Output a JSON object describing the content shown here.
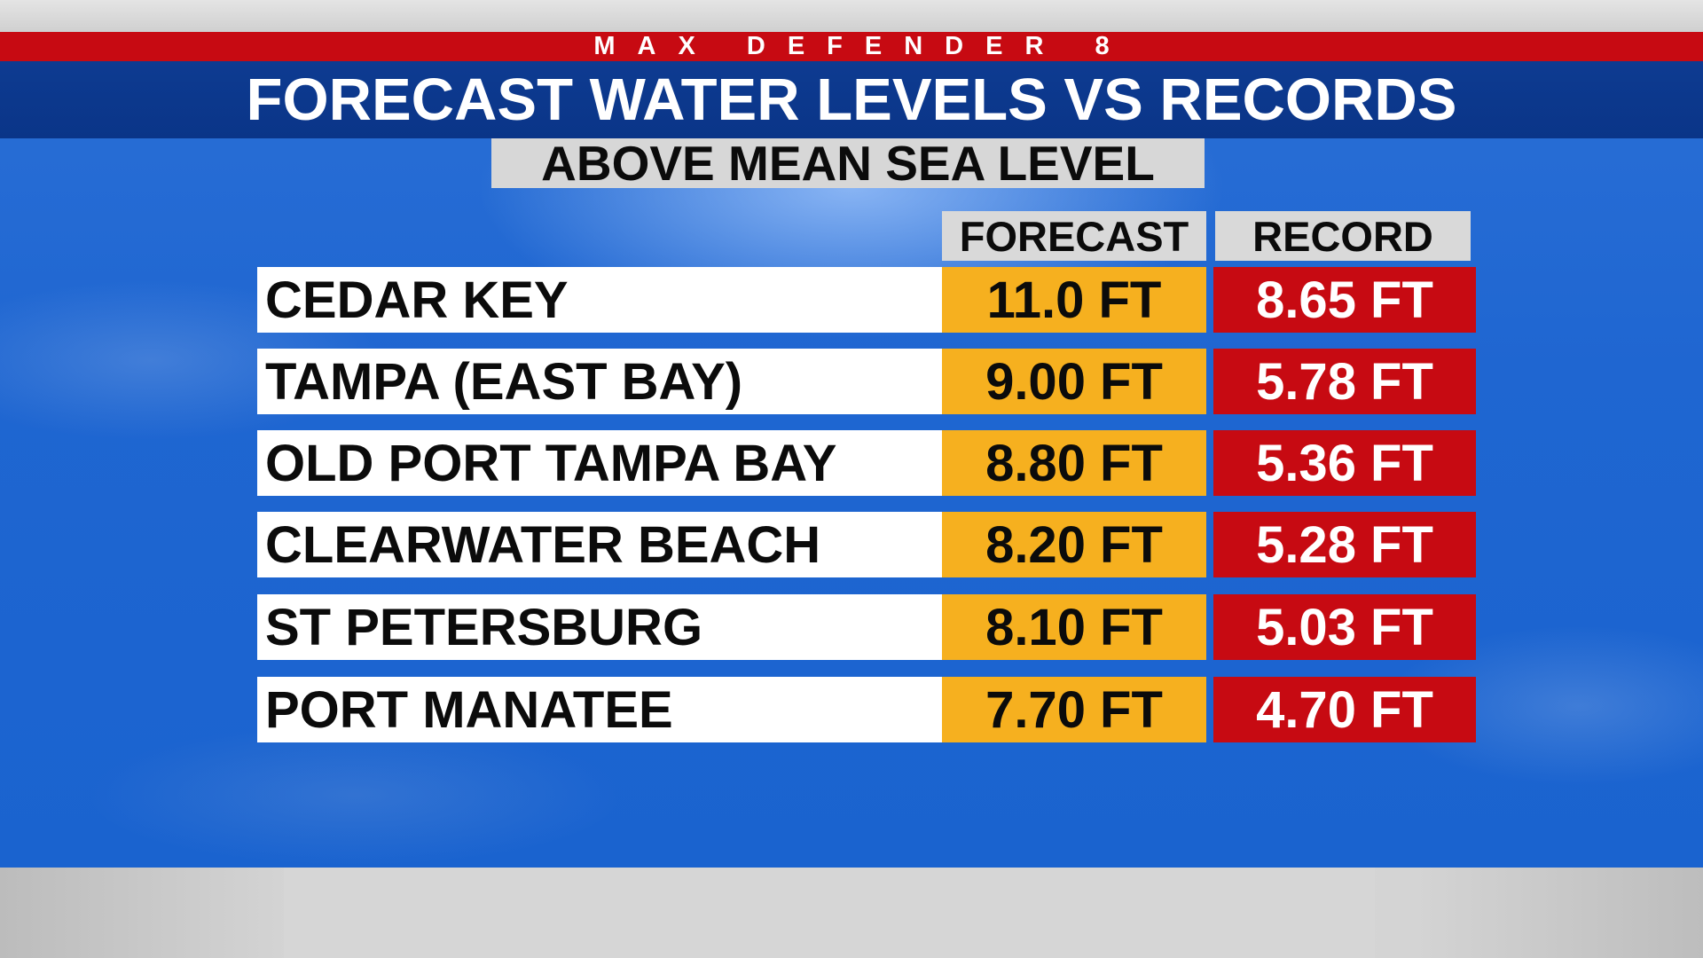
{
  "brand": "MAX DEFENDER 8",
  "title": "FORECAST WATER LEVELS VS RECORDS",
  "subtitle": "ABOVE MEAN SEA LEVEL",
  "columns": {
    "forecast": "FORECAST",
    "record": "RECORD"
  },
  "rows": [
    {
      "location": "CEDAR KEY",
      "forecast": "11.0 FT",
      "record": "8.65 FT"
    },
    {
      "location": "TAMPA (EAST BAY)",
      "forecast": "9.00 FT",
      "record": "5.78 FT"
    },
    {
      "location": "OLD PORT TAMPA BAY",
      "forecast": "8.80 FT",
      "record": "5.36 FT"
    },
    {
      "location": "CLEARWATER BEACH",
      "forecast": "8.20 FT",
      "record": "5.28 FT"
    },
    {
      "location": "ST PETERSBURG",
      "forecast": "8.10 FT",
      "record": "5.03 FT"
    },
    {
      "location": "PORT MANATEE",
      "forecast": "7.70 FT",
      "record": "4.70 FT"
    }
  ],
  "colors": {
    "brand_red": "#c70a12",
    "title_blue": "#0e3b91",
    "sky_blue": "#1f66d1",
    "forecast_yellow": "#f6b01f",
    "record_red": "#c70a12",
    "header_grey": "#d9d9d9"
  }
}
